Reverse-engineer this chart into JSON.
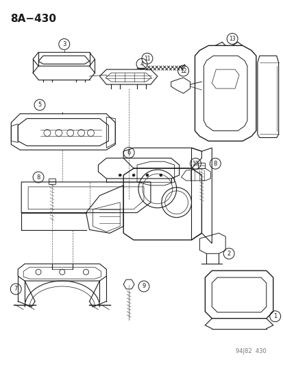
{
  "title": "8A−430",
  "footer": "94J82  430",
  "bg_color": "#ffffff",
  "line_color": "#1a1a1a",
  "title_fontsize": 11,
  "footer_fontsize": 6,
  "fig_width": 4.14,
  "fig_height": 5.33,
  "dpi": 100
}
